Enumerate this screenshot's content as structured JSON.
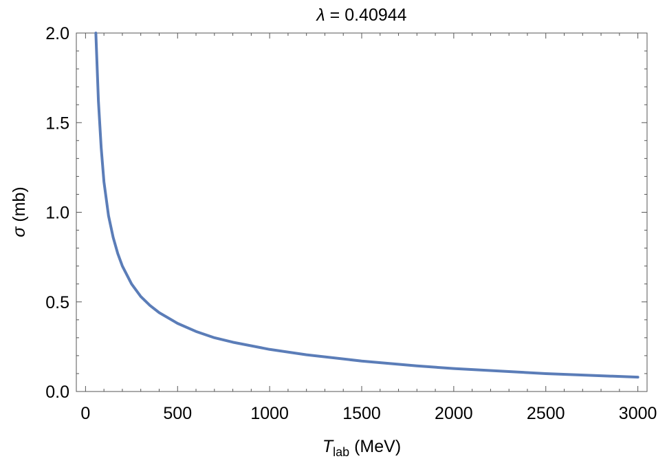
{
  "chart_data": {
    "type": "line",
    "title_symbol": "λ",
    "title_value": " = 0.40944",
    "xlabel_symbol": "T",
    "xlabel_subscript": "lab",
    "xlabel_unit": " (MeV)",
    "ylabel_symbol": "σ",
    "ylabel_unit": " (mb)",
    "xlim": [
      -50,
      3050
    ],
    "ylim": [
      0,
      2.0
    ],
    "xticks": [
      0,
      500,
      1000,
      1500,
      2000,
      2500,
      3000
    ],
    "xtick_labels": [
      "0",
      "500",
      "1000",
      "1500",
      "2000",
      "2500",
      "3000"
    ],
    "yticks": [
      0.0,
      0.5,
      1.0,
      1.5,
      2.0
    ],
    "ytick_labels": [
      "0.0",
      "0.5",
      "1.0",
      "1.5",
      "2.0"
    ],
    "grid": false,
    "series": [
      {
        "color": "#5b7db8",
        "x": [
          56,
          70,
          85,
          100,
          125,
          150,
          175,
          200,
          250,
          300,
          350,
          400,
          500,
          600,
          700,
          800,
          1000,
          1200,
          1500,
          1800,
          2000,
          2500,
          3000
        ],
        "y": [
          2.0,
          1.62,
          1.36,
          1.17,
          0.98,
          0.86,
          0.77,
          0.7,
          0.6,
          0.53,
          0.48,
          0.44,
          0.38,
          0.335,
          0.3,
          0.275,
          0.235,
          0.205,
          0.17,
          0.143,
          0.128,
          0.1,
          0.08
        ]
      }
    ]
  }
}
